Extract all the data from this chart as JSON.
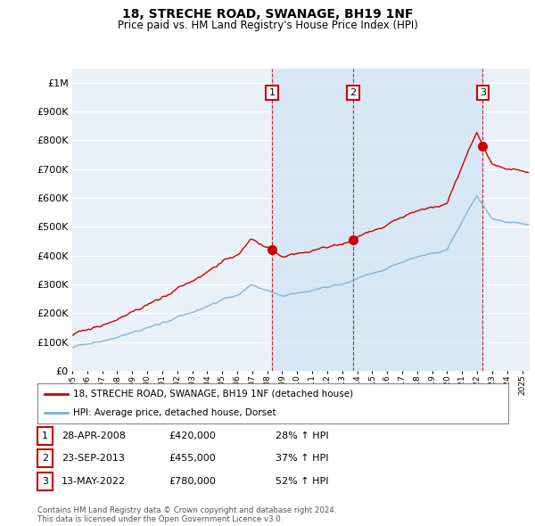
{
  "title": "18, STRECHE ROAD, SWANAGE, BH19 1NF",
  "subtitle": "Price paid vs. HM Land Registry's House Price Index (HPI)",
  "ytick_values": [
    0,
    100000,
    200000,
    300000,
    400000,
    500000,
    600000,
    700000,
    800000,
    900000,
    1000000
  ],
  "ylim": [
    0,
    1050000
  ],
  "xlim_start": 1995.0,
  "xlim_end": 2025.5,
  "hpi_color": "#7bafd4",
  "hpi_fill_color": "#d0e4f5",
  "price_color": "#cc0000",
  "dashed_line_color": "#cc0000",
  "sales": [
    {
      "year": 2008.32,
      "price": 420000,
      "label": "1"
    },
    {
      "year": 2013.73,
      "price": 455000,
      "label": "2"
    },
    {
      "year": 2022.37,
      "price": 780000,
      "label": "3"
    }
  ],
  "sale_info": [
    {
      "num": "1",
      "date": "28-APR-2008",
      "price": "£420,000",
      "hpi": "28% ↑ HPI"
    },
    {
      "num": "2",
      "date": "23-SEP-2013",
      "price": "£455,000",
      "hpi": "37% ↑ HPI"
    },
    {
      "num": "3",
      "date": "13-MAY-2022",
      "price": "£780,000",
      "hpi": "52% ↑ HPI"
    }
  ],
  "legend_label_red": "18, STRECHE ROAD, SWANAGE, BH19 1NF (detached house)",
  "legend_label_blue": "HPI: Average price, detached house, Dorset",
  "footnote": "Contains HM Land Registry data © Crown copyright and database right 2024.\nThis data is licensed under the Open Government Licence v3.0.",
  "background_color": "#ffffff",
  "plot_bg_color": "#eaf0f8"
}
